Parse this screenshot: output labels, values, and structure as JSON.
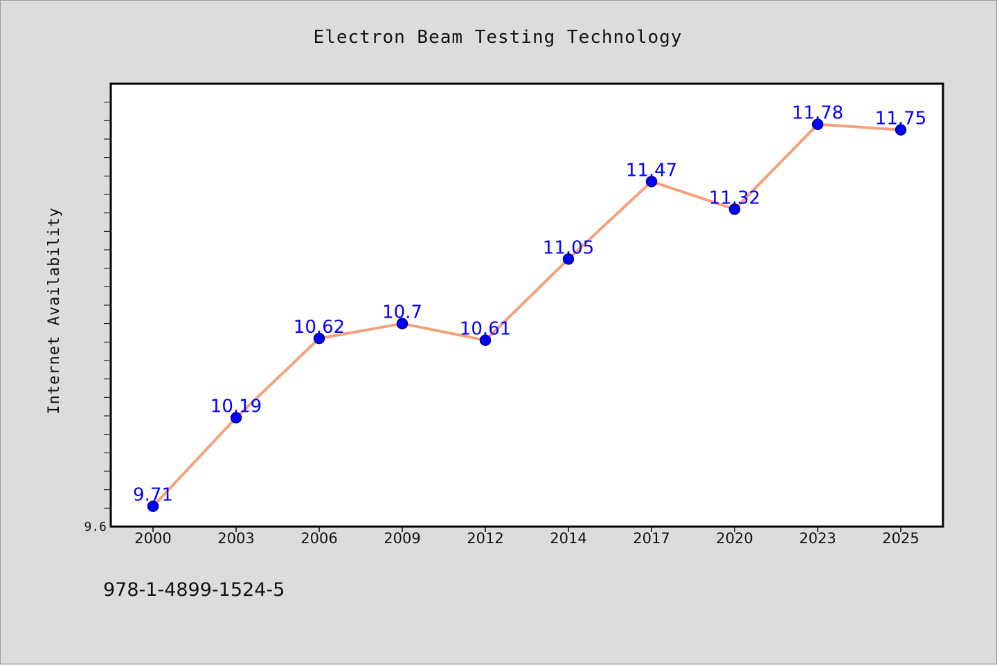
{
  "footnote": "978-1-4899-1524-5",
  "chart_data": {
    "type": "line",
    "title": "Electron Beam Testing Technology",
    "xlabel": "",
    "ylabel": "Internet Availability",
    "categories": [
      "2000",
      "2003",
      "2006",
      "2009",
      "2012",
      "2014",
      "2017",
      "2020",
      "2023",
      "2025"
    ],
    "series": [
      {
        "values": [
          9.71,
          10.19,
          10.62,
          10.7,
          10.61,
          11.05,
          11.47,
          11.32,
          11.78,
          11.75
        ]
      }
    ],
    "data_labels": [
      "9.71",
      "10.19",
      "10.62",
      "10.7",
      "10.61",
      "11.05",
      "11.47",
      "11.32",
      "11.78",
      "11.75"
    ],
    "ylim": [
      9.6,
      12.0
    ],
    "y_tick_labels": [
      "9.6"
    ],
    "y_minor_tick_step": 0.1,
    "grid": false,
    "colors": {
      "line": "#f4a07a",
      "marker": "#0000ff",
      "marker_edge": "#00008b",
      "labels": "#0000ff",
      "plot_bg": "#ffffff",
      "figure_bg": "#dcdcdc"
    }
  }
}
